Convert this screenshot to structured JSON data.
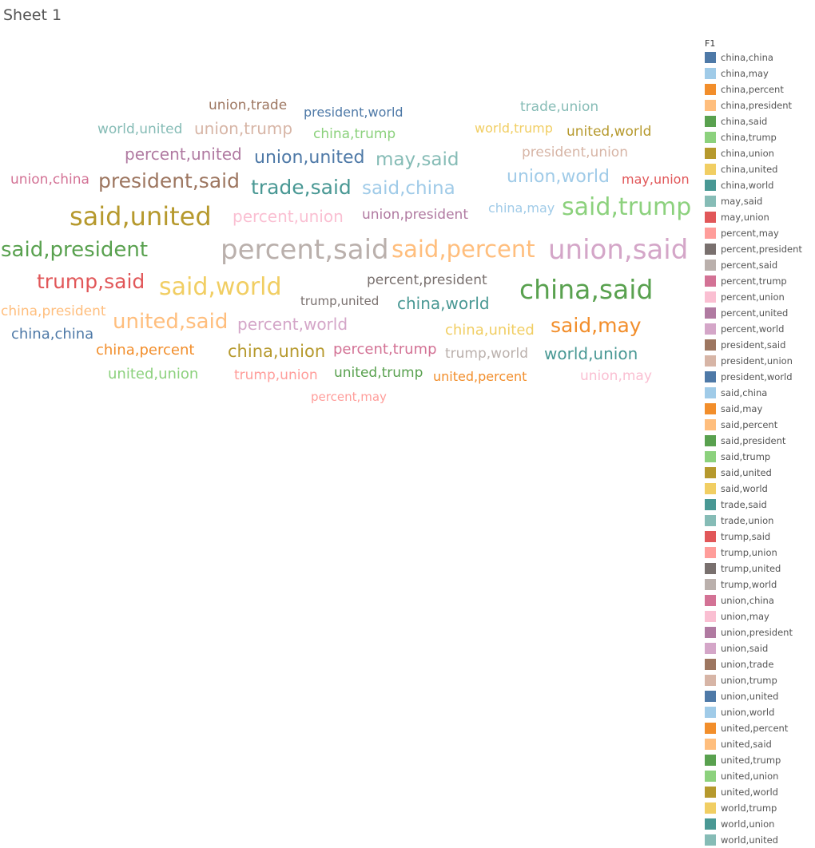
{
  "sheet": {
    "title": "Sheet 1"
  },
  "legend": {
    "title": "F1"
  },
  "chart_data": {
    "type": "word-cloud",
    "legend_field": "F1",
    "legend_position": "right",
    "categories": [
      {
        "label": "china,china",
        "color": "#4e79a7"
      },
      {
        "label": "china,may",
        "color": "#a0cbe8"
      },
      {
        "label": "china,percent",
        "color": "#f28e2b"
      },
      {
        "label": "china,president",
        "color": "#ffbe7d"
      },
      {
        "label": "china,said",
        "color": "#59a14f"
      },
      {
        "label": "china,trump",
        "color": "#8cd17d"
      },
      {
        "label": "china,union",
        "color": "#b6992d"
      },
      {
        "label": "china,united",
        "color": "#f1ce63"
      },
      {
        "label": "china,world",
        "color": "#499894"
      },
      {
        "label": "may,said",
        "color": "#86bcb6"
      },
      {
        "label": "may,union",
        "color": "#e15759"
      },
      {
        "label": "percent,may",
        "color": "#ff9d9a"
      },
      {
        "label": "percent,president",
        "color": "#79706e"
      },
      {
        "label": "percent,said",
        "color": "#bab0ac"
      },
      {
        "label": "percent,trump",
        "color": "#d37295"
      },
      {
        "label": "percent,union",
        "color": "#fabfd2"
      },
      {
        "label": "percent,united",
        "color": "#b07aa1"
      },
      {
        "label": "percent,world",
        "color": "#d4a6c8"
      },
      {
        "label": "president,said",
        "color": "#9d7660"
      },
      {
        "label": "president,union",
        "color": "#d7b5a6"
      },
      {
        "label": "president,world",
        "color": "#4e79a7"
      },
      {
        "label": "said,china",
        "color": "#a0cbe8"
      },
      {
        "label": "said,may",
        "color": "#f28e2b"
      },
      {
        "label": "said,percent",
        "color": "#ffbe7d"
      },
      {
        "label": "said,president",
        "color": "#59a14f"
      },
      {
        "label": "said,trump",
        "color": "#8cd17d"
      },
      {
        "label": "said,united",
        "color": "#b6992d"
      },
      {
        "label": "said,world",
        "color": "#f1ce63"
      },
      {
        "label": "trade,said",
        "color": "#499894"
      },
      {
        "label": "trade,union",
        "color": "#86bcb6"
      },
      {
        "label": "trump,said",
        "color": "#e15759"
      },
      {
        "label": "trump,union",
        "color": "#ff9d9a"
      },
      {
        "label": "trump,united",
        "color": "#79706e"
      },
      {
        "label": "trump,world",
        "color": "#bab0ac"
      },
      {
        "label": "union,china",
        "color": "#d37295"
      },
      {
        "label": "union,may",
        "color": "#fabfd2"
      },
      {
        "label": "union,president",
        "color": "#b07aa1"
      },
      {
        "label": "union,said",
        "color": "#d4a6c8"
      },
      {
        "label": "union,trade",
        "color": "#9d7660"
      },
      {
        "label": "union,trump",
        "color": "#d7b5a6"
      },
      {
        "label": "union,united",
        "color": "#4e79a7"
      },
      {
        "label": "union,world",
        "color": "#a0cbe8"
      },
      {
        "label": "united,percent",
        "color": "#f28e2b"
      },
      {
        "label": "united,said",
        "color": "#ffbe7d"
      },
      {
        "label": "united,trump",
        "color": "#59a14f"
      },
      {
        "label": "united,union",
        "color": "#8cd17d"
      },
      {
        "label": "united,world",
        "color": "#b6992d"
      },
      {
        "label": "world,trump",
        "color": "#f1ce63"
      },
      {
        "label": "world,union",
        "color": "#499894"
      },
      {
        "label": "world,united",
        "color": "#86bcb6"
      }
    ]
  }
}
